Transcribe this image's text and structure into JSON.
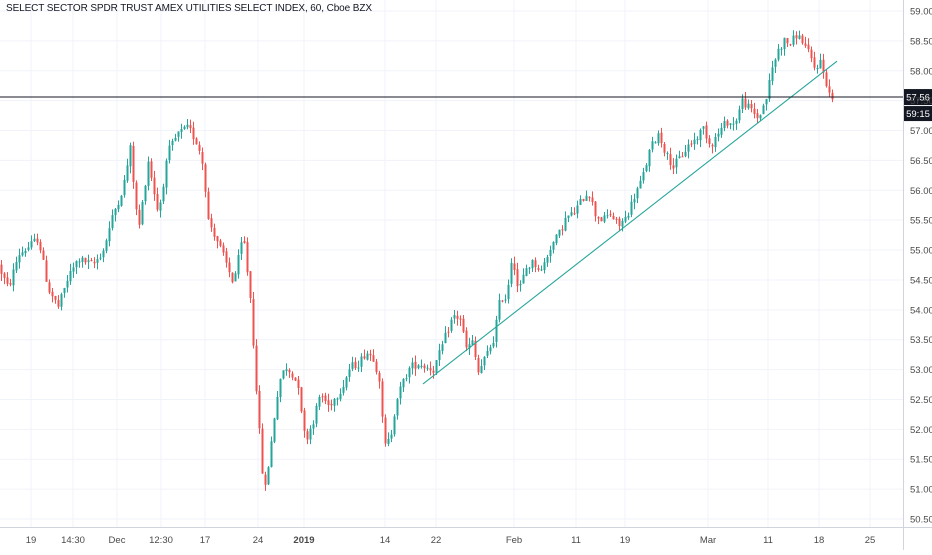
{
  "title": "SELECT SECTOR SPDR TRUST AMEX UTILITIES SELECT INDEX, 60, Cboe BZX",
  "colors": {
    "up": "#26a69a",
    "down": "#ef5350",
    "trendline": "#26a69a",
    "price_line": "#131722",
    "grid": "#f0f3fa",
    "axis_text": "#4a4a4a",
    "label_bg": "#131722",
    "label_text": "#ffffff"
  },
  "chart_data": {
    "type": "candlestick",
    "symbol": "SELECT SECTOR SPDR TRUST AMEX UTILITIES SELECT INDEX",
    "interval": "60",
    "exchange": "Cboe BZX",
    "ylim": [
      50.4,
      59.1
    ],
    "y_ticks": [
      "59.00",
      "58.50",
      "58.00",
      "57.50",
      "57.00",
      "56.50",
      "56.00",
      "55.50",
      "55.00",
      "54.50",
      "54.00",
      "53.50",
      "53.00",
      "52.50",
      "52.00",
      "51.50",
      "51.00",
      "50.50"
    ],
    "x_ticks": [
      "19",
      "14:30",
      "Dec",
      "12:30",
      "17",
      "24",
      "2019",
      "14",
      "22",
      "Feb",
      "11",
      "19",
      "Mar",
      "11",
      "18",
      "25"
    ],
    "price_path": [
      [
        0,
        54.75
      ],
      [
        10,
        54.35
      ],
      [
        20,
        54.92
      ],
      [
        30,
        55.05
      ],
      [
        40,
        55.2
      ],
      [
        50,
        54.35
      ],
      [
        60,
        54.05
      ],
      [
        70,
        54.55
      ],
      [
        80,
        54.85
      ],
      [
        95,
        54.75
      ],
      [
        105,
        55.0
      ],
      [
        115,
        55.6
      ],
      [
        125,
        56.05
      ],
      [
        132,
        56.7
      ],
      [
        140,
        55.3
      ],
      [
        150,
        56.5
      ],
      [
        160,
        55.6
      ],
      [
        170,
        56.65
      ],
      [
        180,
        56.95
      ],
      [
        190,
        57.05
      ],
      [
        200,
        56.75
      ],
      [
        205,
        56.4
      ],
      [
        210,
        55.5
      ],
      [
        218,
        55.2
      ],
      [
        225,
        54.9
      ],
      [
        235,
        54.45
      ],
      [
        245,
        55.25
      ],
      [
        252,
        54.2
      ],
      [
        258,
        52.7
      ],
      [
        262,
        51.7
      ],
      [
        266,
        50.9
      ],
      [
        272,
        51.65
      ],
      [
        278,
        52.5
      ],
      [
        285,
        53.0
      ],
      [
        292,
        52.95
      ],
      [
        300,
        52.75
      ],
      [
        307,
        51.8
      ],
      [
        315,
        52.15
      ],
      [
        322,
        52.6
      ],
      [
        330,
        52.4
      ],
      [
        338,
        52.55
      ],
      [
        345,
        52.75
      ],
      [
        352,
        53.05
      ],
      [
        360,
        53.1
      ],
      [
        368,
        53.3
      ],
      [
        375,
        53.2
      ],
      [
        381,
        52.85
      ],
      [
        386,
        51.7
      ],
      [
        392,
        51.85
      ],
      [
        398,
        52.5
      ],
      [
        405,
        52.8
      ],
      [
        412,
        53.05
      ],
      [
        420,
        53.1
      ],
      [
        428,
        53.05
      ],
      [
        435,
        53.0
      ],
      [
        442,
        53.3
      ],
      [
        448,
        53.6
      ],
      [
        455,
        53.9
      ],
      [
        462,
        53.85
      ],
      [
        468,
        53.35
      ],
      [
        474,
        53.45
      ],
      [
        480,
        52.95
      ],
      [
        487,
        53.2
      ],
      [
        495,
        53.5
      ],
      [
        502,
        54.2
      ],
      [
        508,
        54.2
      ],
      [
        514,
        54.95
      ],
      [
        520,
        54.3
      ],
      [
        528,
        54.7
      ],
      [
        535,
        54.8
      ],
      [
        543,
        54.65
      ],
      [
        552,
        55.05
      ],
      [
        560,
        55.25
      ],
      [
        568,
        55.55
      ],
      [
        575,
        55.6
      ],
      [
        582,
        55.8
      ],
      [
        590,
        56.0
      ],
      [
        597,
        55.6
      ],
      [
        604,
        55.5
      ],
      [
        612,
        55.6
      ],
      [
        620,
        55.4
      ],
      [
        628,
        55.55
      ],
      [
        636,
        55.9
      ],
      [
        644,
        56.2
      ],
      [
        652,
        56.7
      ],
      [
        660,
        56.95
      ],
      [
        668,
        56.6
      ],
      [
        675,
        56.4
      ],
      [
        682,
        56.55
      ],
      [
        690,
        56.75
      ],
      [
        697,
        56.85
      ],
      [
        705,
        57.05
      ],
      [
        712,
        56.75
      ],
      [
        720,
        56.95
      ],
      [
        728,
        57.15
      ],
      [
        736,
        57.1
      ],
      [
        744,
        57.5
      ],
      [
        752,
        57.35
      ],
      [
        760,
        57.2
      ],
      [
        768,
        57.55
      ],
      [
        774,
        58.05
      ],
      [
        780,
        58.35
      ],
      [
        786,
        58.5
      ],
      [
        792,
        58.45
      ],
      [
        798,
        58.6
      ],
      [
        804,
        58.5
      ],
      [
        810,
        58.3
      ],
      [
        816,
        58.05
      ],
      [
        822,
        58.15
      ],
      [
        828,
        57.8
      ],
      [
        832,
        57.55
      ]
    ],
    "trendlines": [
      {
        "from": [
          423,
          52.76
        ],
        "to": [
          837,
          58.16
        ]
      }
    ],
    "price_line": {
      "value": "57.56",
      "countdown": "59:15"
    }
  }
}
